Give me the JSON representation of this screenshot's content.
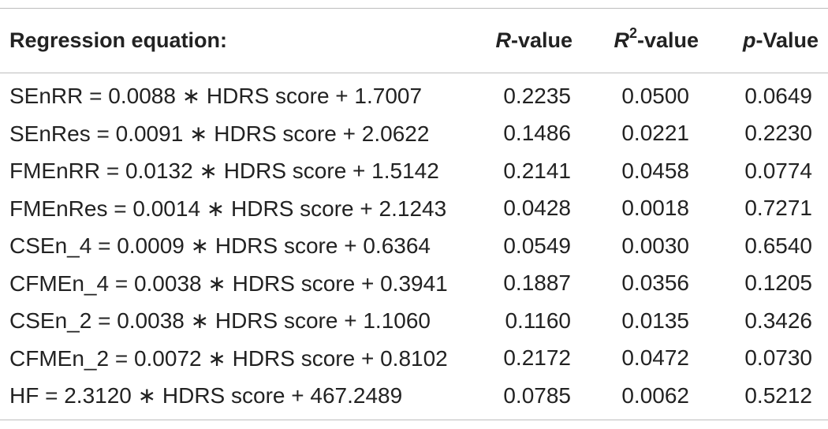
{
  "table": {
    "headers": {
      "equation": "Regression equation:",
      "r_italic": "R",
      "r_suffix": "-value",
      "r2_italic": "R",
      "r2_sup": "2",
      "r2_suffix": "-value",
      "p_italic": "p",
      "p_suffix": "-Value"
    },
    "rows": [
      {
        "equation": "SEnRR = 0.0088 ∗ HDRS score + 1.7007",
        "r": "0.2235",
        "r2": "0.0500",
        "p": "0.0649"
      },
      {
        "equation": "SEnRes = 0.0091 ∗ HDRS score + 2.0622",
        "r": "0.1486",
        "r2": "0.0221",
        "p": "0.2230"
      },
      {
        "equation": "FMEnRR = 0.0132 ∗ HDRS score + 1.5142",
        "r": "0.2141",
        "r2": "0.0458",
        "p": "0.0774"
      },
      {
        "equation": "FMEnRes = 0.0014 ∗ HDRS score + 2.1243",
        "r": "0.0428",
        "r2": "0.0018",
        "p": "0.7271"
      },
      {
        "equation": "CSEn_4 = 0.0009 ∗ HDRS score + 0.6364",
        "r": "0.0549",
        "r2": "0.0030",
        "p": "0.6540"
      },
      {
        "equation": "CFMEn_4 = 0.0038 ∗ HDRS score + 0.3941",
        "r": "0.1887",
        "r2": "0.0356",
        "p": "0.1205"
      },
      {
        "equation": "CSEn_2 = 0.0038 ∗ HDRS score + 1.1060",
        "r": "0.1160",
        "r2": "0.0135",
        "p": "0.3426"
      },
      {
        "equation": "CFMEn_2 = 0.0072 ∗ HDRS score + 0.8102",
        "r": "0.2172",
        "r2": "0.0472",
        "p": "0.0730"
      },
      {
        "equation": "HF = 2.3120 ∗ HDRS score + 467.2489",
        "r": "0.0785",
        "r2": "0.0062",
        "p": "0.5212"
      }
    ]
  }
}
